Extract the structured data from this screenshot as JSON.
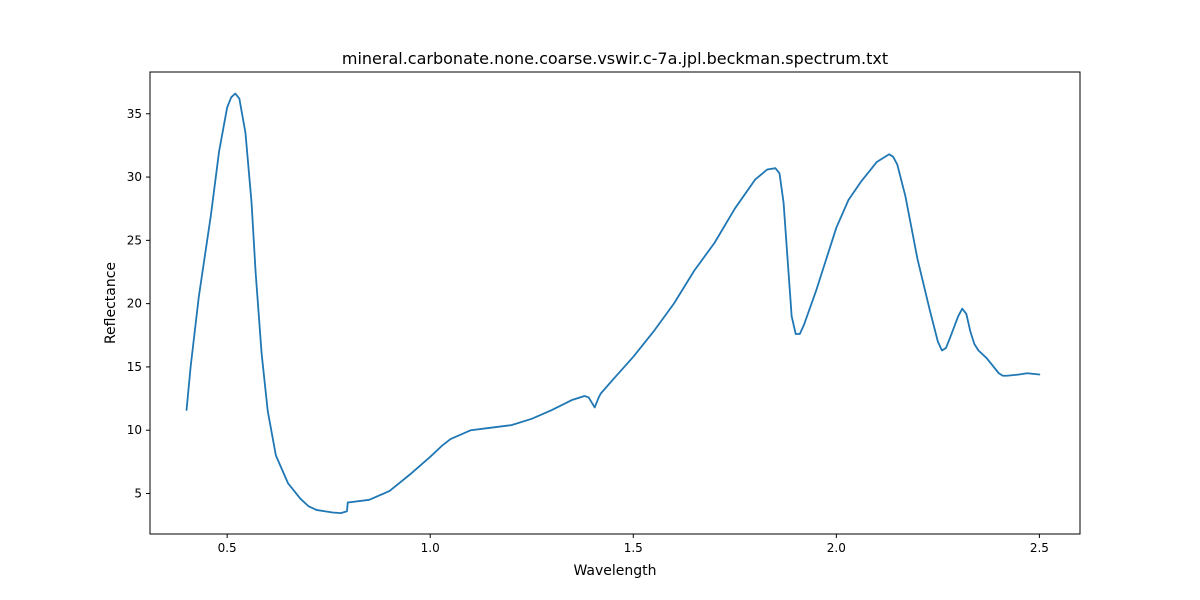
{
  "chart_data": {
    "type": "line",
    "title": "mineral.carbonate.none.coarse.vswir.c-7a.jpl.beckman.spectrum.txt",
    "xlabel": "Wavelength",
    "ylabel": "Reflectance",
    "xlim": [
      0.31,
      2.6
    ],
    "ylim": [
      1.8,
      38.3
    ],
    "xticks": [
      "0.5",
      "1.0",
      "1.5",
      "2.0",
      "2.5"
    ],
    "yticks": [
      "5",
      "10",
      "15",
      "20",
      "25",
      "30",
      "35"
    ],
    "grid": false,
    "line_color": "#1f77b4",
    "series": [
      {
        "x": [
          0.4,
          0.41,
          0.43,
          0.46,
          0.48,
          0.5,
          0.51,
          0.52,
          0.53,
          0.545,
          0.56,
          0.57,
          0.585,
          0.6,
          0.62,
          0.65,
          0.68,
          0.7,
          0.72,
          0.74,
          0.76,
          0.78,
          0.795,
          0.797,
          0.8,
          0.85,
          0.9,
          0.95,
          1.0,
          1.03,
          1.05,
          1.1,
          1.15,
          1.2,
          1.25,
          1.3,
          1.35,
          1.38,
          1.39,
          1.405,
          1.415,
          1.42,
          1.45,
          1.5,
          1.55,
          1.6,
          1.65,
          1.7,
          1.75,
          1.8,
          1.83,
          1.85,
          1.86,
          1.87,
          1.88,
          1.89,
          1.9,
          1.91,
          1.92,
          1.93,
          1.95,
          1.97,
          2.0,
          2.03,
          2.06,
          2.1,
          2.13,
          2.14,
          2.15,
          2.17,
          2.2,
          2.23,
          2.25,
          2.26,
          2.27,
          2.28,
          2.3,
          2.31,
          2.32,
          2.33,
          2.34,
          2.35,
          2.37,
          2.4,
          2.41,
          2.42,
          2.45,
          2.47,
          2.5
        ],
        "y": [
          11.6,
          15.0,
          20.5,
          27.0,
          32.0,
          35.5,
          36.3,
          36.6,
          36.2,
          33.5,
          28.0,
          22.5,
          16.0,
          11.5,
          8.0,
          5.8,
          4.6,
          4.0,
          3.7,
          3.6,
          3.5,
          3.45,
          3.6,
          4.3,
          4.3,
          4.5,
          5.2,
          6.5,
          7.9,
          8.8,
          9.3,
          10.0,
          10.2,
          10.4,
          10.9,
          11.6,
          12.4,
          12.7,
          12.6,
          11.8,
          12.6,
          12.9,
          14.0,
          15.8,
          17.8,
          20.0,
          22.6,
          24.8,
          27.5,
          29.8,
          30.6,
          30.7,
          30.3,
          28.0,
          23.5,
          19.0,
          17.6,
          17.6,
          18.3,
          19.2,
          21.0,
          23.0,
          26.0,
          28.2,
          29.6,
          31.2,
          31.8,
          31.6,
          31.0,
          28.5,
          23.5,
          19.5,
          17.0,
          16.3,
          16.5,
          17.3,
          19.0,
          19.6,
          19.2,
          17.8,
          16.8,
          16.3,
          15.7,
          14.5,
          14.3,
          14.3,
          14.4,
          14.5,
          14.4
        ]
      }
    ]
  }
}
